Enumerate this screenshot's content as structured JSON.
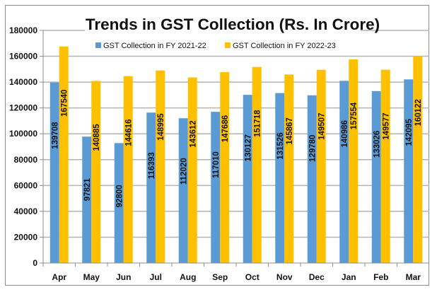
{
  "chart_data": {
    "type": "bar",
    "title": "Trends in GST Collection (Rs. In Crore)",
    "xlabel": "",
    "ylabel": "",
    "ylim": [
      0,
      180000
    ],
    "yticks": [
      0,
      20000,
      40000,
      60000,
      80000,
      100000,
      120000,
      140000,
      160000,
      180000
    ],
    "grid": true,
    "legend_position": "top-center",
    "categories": [
      "Apr",
      "May",
      "Jun",
      "Jul",
      "Aug",
      "Sep",
      "Oct",
      "Nov",
      "Dec",
      "Jan",
      "Feb",
      "Mar"
    ],
    "series": [
      {
        "name": "GST Collection in FY 2021-22",
        "color": "#5b9bd5",
        "values": [
          139708,
          97821,
          92800,
          116393,
          112020,
          117010,
          130127,
          131526,
          129780,
          140986,
          133026,
          142095
        ]
      },
      {
        "name": "GST Collection in FY 2022-23",
        "color": "#ffc000",
        "values": [
          167540,
          140885,
          144616,
          148995,
          143612,
          147686,
          151718,
          145867,
          149507,
          157554,
          149577,
          160122
        ]
      }
    ]
  }
}
